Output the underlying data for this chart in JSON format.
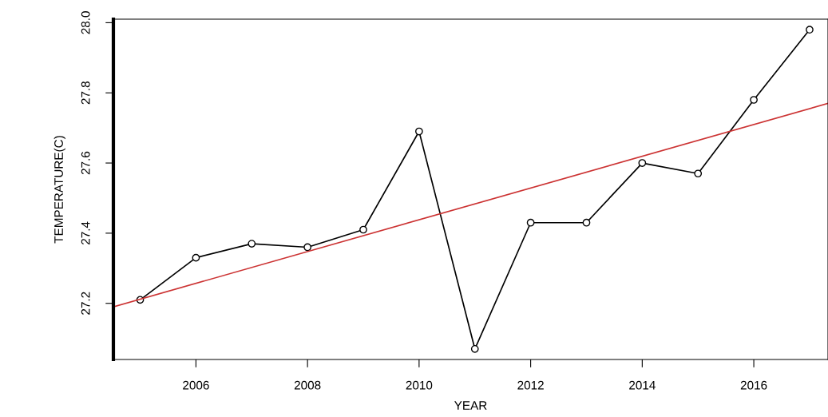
{
  "chart_data": {
    "type": "line",
    "xlabel": "YEAR",
    "ylabel": "TEMPERATURE(C)",
    "x": [
      2005,
      2006,
      2007,
      2008,
      2009,
      2010,
      2011,
      2012,
      2013,
      2014,
      2015,
      2016,
      2017
    ],
    "series": [
      {
        "color": "#000000",
        "values": [
          27.21,
          27.33,
          27.37,
          27.36,
          27.41,
          27.69,
          27.07,
          27.43,
          27.43,
          27.6,
          27.57,
          27.78,
          27.98
        ],
        "marker": "circle"
      },
      {
        "type": "line",
        "color": "#cc3333",
        "x": [
          2004.52,
          2017.33
        ],
        "values": [
          27.19,
          27.77
        ],
        "marker": "none"
      }
    ],
    "xlim": [
      2004.52,
      2017.33
    ],
    "ylim": [
      27.04,
      28.01
    ],
    "xticks": [
      2006,
      2008,
      2010,
      2012,
      2014,
      2016
    ],
    "yticks": [
      27.2,
      27.4,
      27.6,
      27.8,
      {
        "value": 28.0,
        "label": "28.0"
      }
    ],
    "grid": false,
    "legend": false,
    "line_style": "solid"
  }
}
